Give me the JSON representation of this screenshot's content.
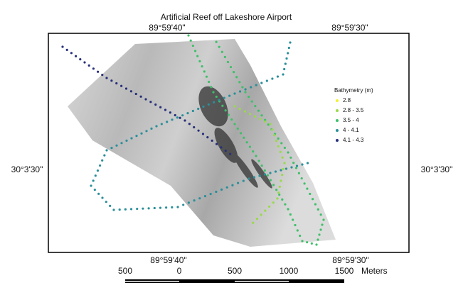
{
  "title": "Artificial Reef off Lakeshore Airport",
  "coordinates": {
    "top": [
      "89°59'40\"",
      "89°59'30\""
    ],
    "bottom": [
      "89°59'40\"",
      "89°59'30\""
    ],
    "left": "30°3'30\"",
    "right": "30°3'30\""
  },
  "legend": {
    "title": "Bathymetry (m)",
    "items": [
      {
        "label": "2.8",
        "color": "#f2f230"
      },
      {
        "label": "2.8 - 3.5",
        "color": "#9ad94a"
      },
      {
        "label": "3.5 - 4",
        "color": "#3fbf6a"
      },
      {
        "label": "4 - 4.1",
        "color": "#2a8f9a"
      },
      {
        "label": "4.1 - 4.3",
        "color": "#27307a"
      }
    ]
  },
  "scale_bar": {
    "labels": [
      "500",
      "0",
      "500",
      "1000",
      "1500"
    ],
    "unit": "Meters"
  }
}
